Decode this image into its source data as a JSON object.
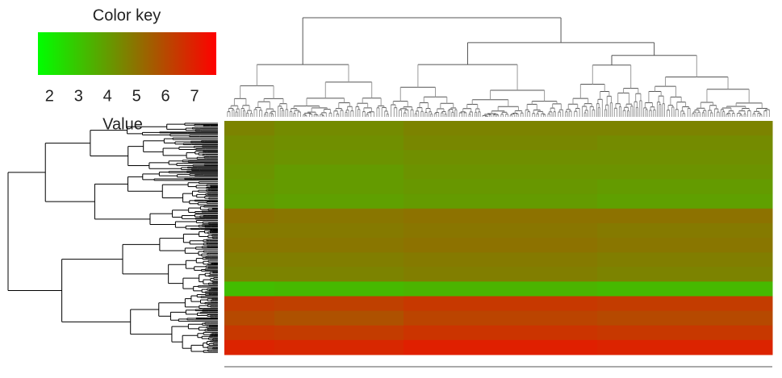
{
  "chart_data": {
    "type": "heatmap",
    "title": "Color key",
    "xlabel": "Value",
    "colors": [
      "#00ff00",
      "#ff0000"
    ],
    "xlim": [
      1.6,
      7.75
    ],
    "xticks": [
      2,
      3,
      4,
      5,
      6,
      7
    ],
    "values": [
      [
        4.6,
        4.4,
        4.6,
        4.6
      ],
      [
        4.4,
        4.3,
        4.5,
        4.4
      ],
      [
        4.3,
        4.2,
        4.3,
        4.3
      ],
      [
        4.2,
        4.0,
        4.2,
        4.2
      ],
      [
        4.1,
        4.0,
        4.1,
        4.0
      ],
      [
        4.0,
        3.9,
        4.0,
        3.9
      ],
      [
        5.0,
        4.9,
        5.0,
        5.0
      ],
      [
        4.8,
        4.8,
        4.9,
        4.8
      ],
      [
        4.9,
        4.9,
        5.0,
        4.9
      ],
      [
        4.7,
        4.7,
        4.8,
        4.7
      ],
      [
        4.6,
        4.6,
        4.7,
        4.6
      ],
      [
        3.2,
        3.3,
        3.4,
        3.3
      ],
      [
        6.3,
        6.2,
        6.4,
        6.3
      ],
      [
        6.0,
        5.8,
        6.1,
        6.0
      ],
      [
        6.4,
        6.3,
        6.5,
        6.4
      ],
      [
        6.9,
        6.8,
        7.0,
        6.9
      ]
    ]
  }
}
